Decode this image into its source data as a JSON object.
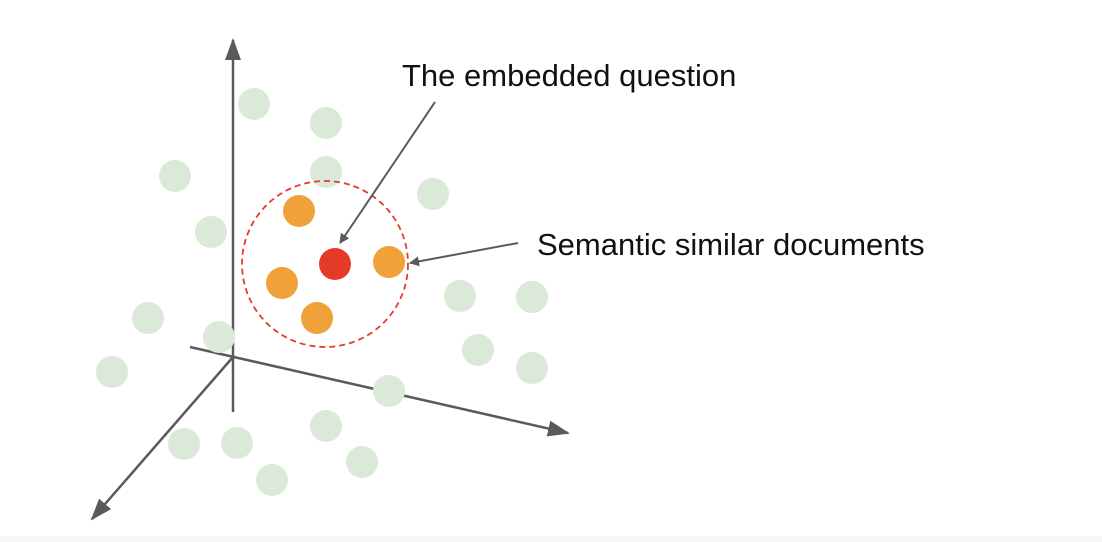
{
  "labels": {
    "embedded_question": "The embedded question",
    "similar_documents": "Semantic similar documents"
  },
  "colors": {
    "background": "#ffffff",
    "axis": "#5a5a5a",
    "document_point": "#dbe9d8",
    "similar_point": "#f0a13a",
    "question_point": "#e53b26",
    "selection_circle": "#e53b26",
    "annotation_arrow": "#5a5a5a",
    "label_text": "#111111"
  }
}
